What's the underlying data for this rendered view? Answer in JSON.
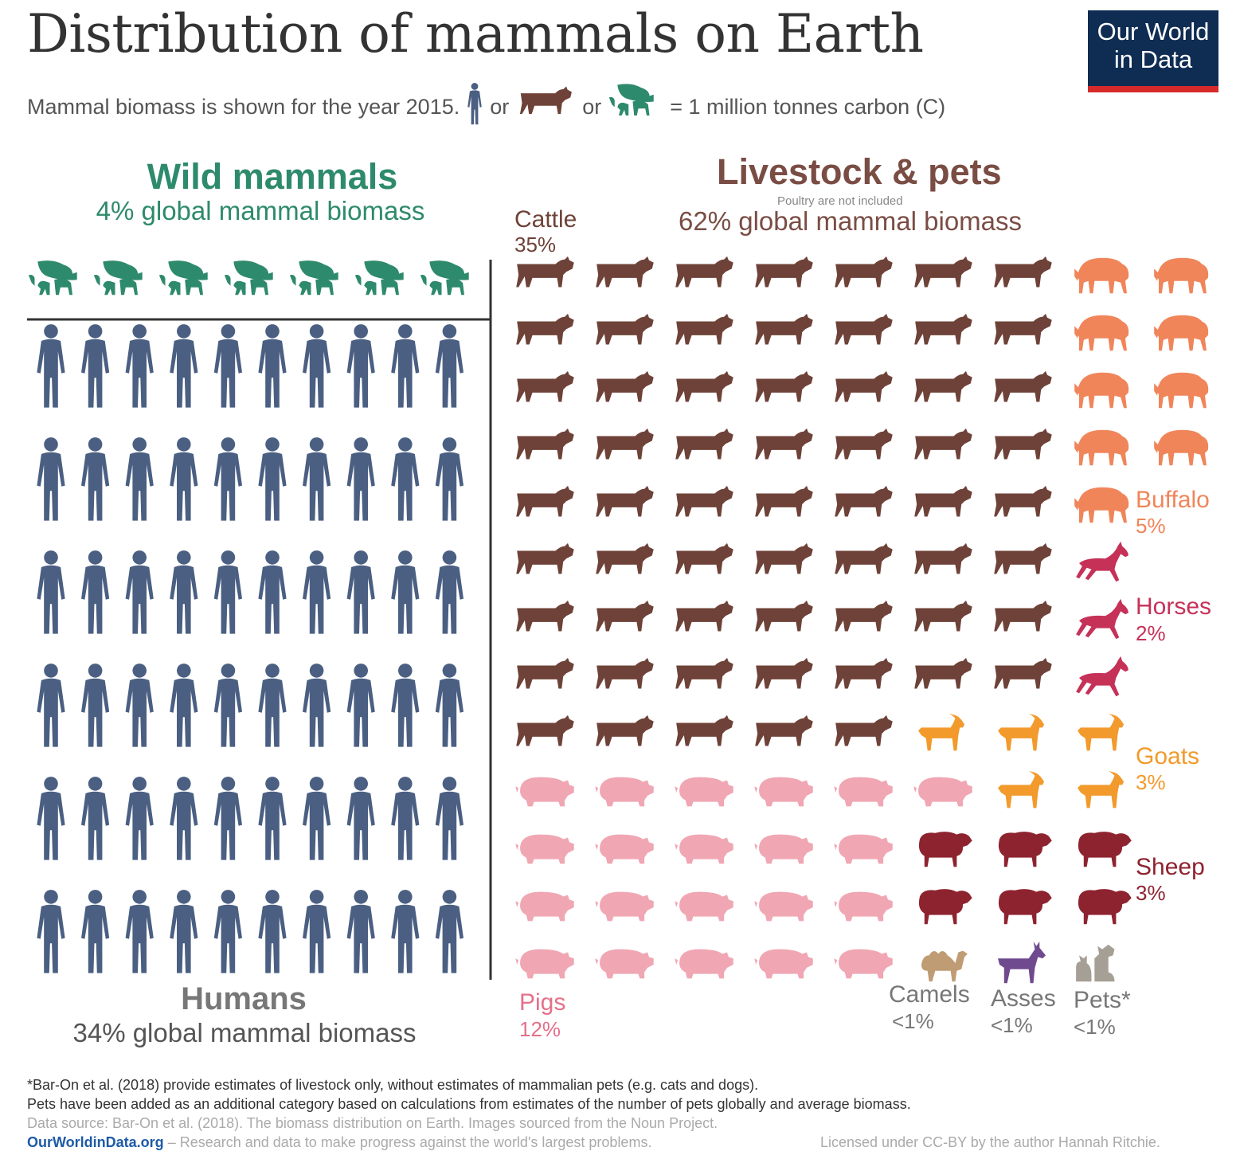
{
  "title": "Distribution of mammals on Earth",
  "logo": {
    "line1": "Our World",
    "line2": "in Data"
  },
  "subtitle": {
    "prefix": "Mammal biomass is shown for the year 2015.",
    "or1": "or",
    "or2": "or",
    "suffix": "= 1 million tonnes carbon (C)"
  },
  "colors": {
    "wild": "#2e8a6c",
    "humans": "#4a5f82",
    "cattle": "#6e4238",
    "buffalo": "#f0855a",
    "horses": "#c63158",
    "goats": "#f29a2b",
    "pigs": "#f0a7b3",
    "sheep": "#8e2330",
    "camels": "#bf9c73",
    "asses": "#6f4a8e",
    "pets": "#a69f95",
    "livestock_title": "#7a4d44"
  },
  "chart_data": {
    "type": "pictogram",
    "unit": "1 million tonnes carbon (C)",
    "year": 2015,
    "groups": [
      {
        "name": "Wild mammals",
        "share_text": "4% global mammal biomass",
        "icons": 7
      },
      {
        "name": "Humans",
        "share_text": "34% global mammal biomass",
        "icons": 60
      },
      {
        "name": "Livestock & pets",
        "share_text": "62% global mammal biomass",
        "note": "Poultry are not included"
      }
    ],
    "livestock": [
      {
        "name": "Cattle",
        "pct": "35%",
        "icons": 61
      },
      {
        "name": "Buffalo",
        "pct": "5%",
        "icons": 9
      },
      {
        "name": "Horses",
        "pct": "2%",
        "icons": 3
      },
      {
        "name": "Goats",
        "pct": "3%",
        "icons": 5
      },
      {
        "name": "Pigs",
        "pct": "12%",
        "icons": 21
      },
      {
        "name": "Sheep",
        "pct": "3%",
        "icons": 6
      },
      {
        "name": "Camels",
        "pct": "<1%",
        "icons": 1
      },
      {
        "name": "Asses",
        "pct": "<1%",
        "icons": 1
      },
      {
        "name": "Pets*",
        "pct": "<1%",
        "icons": 1
      }
    ]
  },
  "labels": {
    "wild_title": "Wild mammals",
    "wild_sub": "4% global mammal biomass",
    "livestock_title": "Livestock & pets",
    "livestock_note": "Poultry are not included",
    "livestock_sub": "62% global mammal biomass",
    "humans_title": "Humans",
    "humans_sub": "34% global mammal biomass",
    "cattle": "Cattle",
    "cattle_pct": "35%",
    "buffalo": "Buffalo",
    "buffalo_pct": "5%",
    "horses": "Horses",
    "horses_pct": "2%",
    "goats": "Goats",
    "goats_pct": "3%",
    "sheep": "Sheep",
    "sheep_pct": "3%",
    "pigs": "Pigs",
    "pigs_pct": "12%",
    "camels": "Camels",
    "camels_pct": "<1%",
    "asses": "Asses",
    "asses_pct": "<1%",
    "pets": "Pets*",
    "pets_pct": "<1%"
  },
  "footnotes": {
    "line1": "*Bar-On et al. (2018) provide estimates of livestock only, without estimates of mammalian pets (e.g. cats and dogs).",
    "line2": "Pets have been added as an additional category based on calculations from estimates of the number of pets globally and average biomass.",
    "line3": "Data source: Bar-On et al. (2018). The biomass distribution on Earth. Images sourced from the Noun Project.",
    "site": "OurWorldinData.org",
    "site_desc": "– Research and data to make progress against the world's largest problems.",
    "license": "Licensed under CC-BY by the author Hannah Ritchie."
  }
}
